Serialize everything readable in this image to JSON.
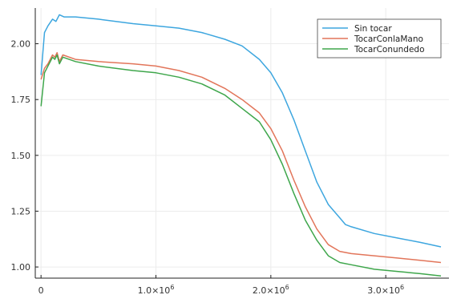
{
  "chart_data": {
    "type": "line",
    "title": "",
    "xlabel": "",
    "ylabel": "",
    "xlim": [
      -50000,
      3550000
    ],
    "ylim": [
      0.95,
      2.16
    ],
    "grid": true,
    "legend_position": "top-right",
    "x_ticks": [
      {
        "value": 0,
        "mantissa": "0",
        "exp": ""
      },
      {
        "value": 1000000,
        "mantissa": "1.0×10",
        "exp": "6"
      },
      {
        "value": 2000000,
        "mantissa": "2.0×10",
        "exp": "6"
      },
      {
        "value": 3000000,
        "mantissa": "3.0×10",
        "exp": "6"
      }
    ],
    "y_ticks": [
      {
        "value": 1.0,
        "label": "1.00"
      },
      {
        "value": 1.25,
        "label": "1.25"
      },
      {
        "value": 1.5,
        "label": "1.50"
      },
      {
        "value": 1.75,
        "label": "1.75"
      },
      {
        "value": 2.0,
        "label": "2.00"
      }
    ],
    "series": [
      {
        "name": "Sin tocar",
        "color": "#3da6df",
        "x": [
          0,
          30000,
          60000,
          100000,
          130000,
          160000,
          200000,
          300000,
          500000,
          800000,
          1000000,
          1200000,
          1400000,
          1600000,
          1750000,
          1900000,
          2000000,
          2100000,
          2200000,
          2300000,
          2400000,
          2500000,
          2600000,
          2650000,
          2700000,
          2900000,
          3100000,
          3300000,
          3480000
        ],
        "y": [
          1.86,
          2.05,
          2.08,
          2.11,
          2.1,
          2.13,
          2.12,
          2.12,
          2.11,
          2.09,
          2.08,
          2.07,
          2.05,
          2.02,
          1.99,
          1.93,
          1.87,
          1.78,
          1.66,
          1.52,
          1.38,
          1.28,
          1.22,
          1.19,
          1.18,
          1.15,
          1.13,
          1.11,
          1.09
        ]
      },
      {
        "name": "TocarConlaMano",
        "color": "#e2755a",
        "x": [
          0,
          30000,
          60000,
          100000,
          120000,
          140000,
          160000,
          190000,
          300000,
          500000,
          800000,
          1000000,
          1200000,
          1400000,
          1600000,
          1750000,
          1900000,
          2000000,
          2100000,
          2200000,
          2300000,
          2400000,
          2500000,
          2600000,
          2700000,
          2900000,
          3100000,
          3300000,
          3480000
        ],
        "y": [
          1.84,
          1.89,
          1.91,
          1.95,
          1.94,
          1.96,
          1.92,
          1.95,
          1.93,
          1.92,
          1.91,
          1.9,
          1.88,
          1.85,
          1.8,
          1.75,
          1.69,
          1.62,
          1.52,
          1.39,
          1.27,
          1.17,
          1.1,
          1.07,
          1.06,
          1.05,
          1.04,
          1.03,
          1.02
        ]
      },
      {
        "name": "TocarConundedo",
        "color": "#3ea64b",
        "x": [
          0,
          30000,
          60000,
          100000,
          120000,
          140000,
          160000,
          190000,
          300000,
          500000,
          800000,
          1000000,
          1200000,
          1400000,
          1600000,
          1750000,
          1900000,
          2000000,
          2100000,
          2200000,
          2300000,
          2400000,
          2500000,
          2600000,
          2700000,
          2900000,
          3100000,
          3300000,
          3480000
        ],
        "y": [
          1.72,
          1.87,
          1.9,
          1.94,
          1.93,
          1.95,
          1.91,
          1.94,
          1.92,
          1.9,
          1.88,
          1.87,
          1.85,
          1.82,
          1.77,
          1.71,
          1.65,
          1.57,
          1.46,
          1.33,
          1.21,
          1.12,
          1.05,
          1.02,
          1.01,
          0.99,
          0.98,
          0.97,
          0.96
        ]
      }
    ]
  }
}
